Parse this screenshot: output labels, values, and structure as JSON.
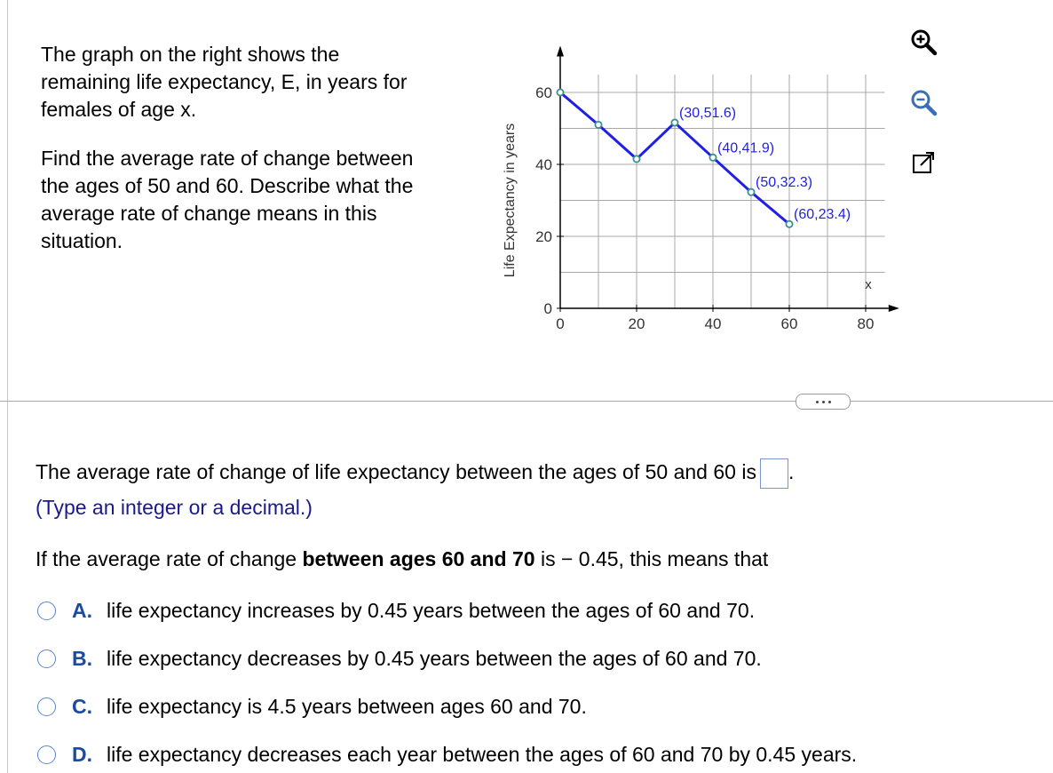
{
  "prompt": {
    "line1": "The graph on the right shows the remaining life expectancy, E, in years for females of age x.",
    "line2": "Find the average rate of change between the ages of 50 and 60. Describe what the average rate of change means in this situation."
  },
  "chart_data": {
    "type": "line",
    "ylabel": "Life Expectancy in years",
    "xlabel": "x",
    "xlim": [
      0,
      80
    ],
    "ylim": [
      0,
      60
    ],
    "grid": true,
    "x_ticks": [
      "0",
      "20",
      "40",
      "60",
      "80"
    ],
    "y_ticks": [
      "0",
      "20",
      "40",
      "60"
    ],
    "series": [
      {
        "x": [
          0,
          10,
          20,
          30,
          40,
          50,
          60
        ],
        "y": [
          60,
          51,
          41.5,
          51.6,
          41.9,
          32.3,
          23.4
        ]
      }
    ],
    "annotations": [
      "(30,51.6)",
      "(40,41.9)",
      "(50,32.3)",
      "(60,23.4)"
    ],
    "line_color": "#1f1fe6",
    "marker_color": "#3a8f8f"
  },
  "tools": [
    "zoom-in-icon",
    "zoom-out-icon",
    "open-new-window-icon"
  ],
  "question": {
    "text": "The average rate of change of life expectancy between the ages of 50 and 60 is",
    "period": ".",
    "hint": "(Type an integer or a decimal.)",
    "followup_pre": "If the average rate of change ",
    "followup_bold": "between ages 60 and 70",
    "followup_post": " is − 0.45, this means that"
  },
  "options": [
    {
      "letter": "A.",
      "text": "life expectancy increases by 0.45 years between the ages of 60 and 70."
    },
    {
      "letter": "B.",
      "text": "life expectancy decreases by 0.45 years between the ages of 60 and 70."
    },
    {
      "letter": "C.",
      "text": "life expectancy is 4.5 years between ages 60 and 70."
    },
    {
      "letter": "D.",
      "text": "life expectancy decreases each year between the ages of 60 and 70 by 0.45 years."
    }
  ]
}
